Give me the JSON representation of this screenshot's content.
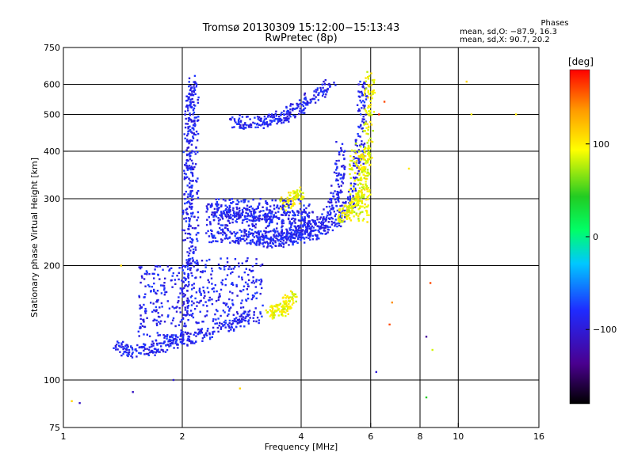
{
  "header": {
    "title": "Tromsø 20130309 15:12:00−15:13:43",
    "subtitle": "RwPretec (8p)",
    "phase_title": "Phases",
    "phase_line1": "mean, sd,O: −87.9, 16.3",
    "phase_line2": "mean, sd,X:  90.7, 20.2"
  },
  "colorbar": {
    "unit_label": "[deg]",
    "ticks": [
      "100",
      "0",
      "−100"
    ],
    "tick_values": [
      100,
      0,
      -100
    ],
    "range": [
      -180,
      180
    ],
    "colors": [
      "#000000",
      "#4a008f",
      "#1f2bff",
      "#00c8ff",
      "#00ff66",
      "#22cc22",
      "#ffff00",
      "#ff9900",
      "#ff0000"
    ]
  },
  "chart_data": {
    "type": "scatter",
    "title": "Tromsø 20130309 15:12:00−15:13:43",
    "subtitle": "RwPretec (8p)",
    "xlabel": "Frequency [MHz]",
    "ylabel": "Stationary phase Virtual Height [km]",
    "xscale": "log",
    "yscale": "log",
    "xlim": [
      1,
      16
    ],
    "ylim": [
      75,
      750
    ],
    "x_ticks": [
      1,
      2,
      4,
      6,
      8,
      10,
      16
    ],
    "y_ticks": [
      75,
      100,
      200,
      300,
      400,
      500,
      600,
      750
    ],
    "x_grid": [
      2,
      4,
      6,
      8,
      10
    ],
    "y_grid": [
      100,
      200,
      300,
      400,
      500,
      600
    ],
    "grid": true,
    "legend": "colorbar right (phase, deg)",
    "series": [
      {
        "name": "O",
        "phase_mean": -87.9,
        "phase_sd": 16.3,
        "traces": [
          {
            "points": [
              [
                1.35,
                122
              ],
              [
                1.5,
                119
              ],
              [
                1.7,
                121
              ],
              [
                1.85,
                125
              ],
              [
                2.0,
                128
              ],
              [
                2.3,
                132
              ],
              [
                2.7,
                140
              ],
              [
                3.0,
                150
              ]
            ]
          },
          {
            "points": [
              [
                2.05,
                128
              ],
              [
                2.06,
                200
              ],
              [
                2.07,
                300
              ],
              [
                2.08,
                420
              ],
              [
                2.1,
                540
              ],
              [
                2.12,
                620
              ]
            ]
          },
          {
            "points": [
              [
                2.3,
                240
              ],
              [
                2.8,
                238
              ],
              [
                3.2,
                237
              ],
              [
                3.6,
                240
              ],
              [
                4.0,
                246
              ],
              [
                4.5,
                258
              ],
              [
                4.8,
                285
              ],
              [
                5.0,
                340
              ],
              [
                5.05,
                420
              ]
            ]
          },
          {
            "points": [
              [
                3.1,
                230
              ],
              [
                3.5,
                232
              ],
              [
                3.8,
                236
              ],
              [
                4.2,
                242
              ],
              [
                4.7,
                252
              ],
              [
                5.1,
                270
              ],
              [
                5.4,
                305
              ],
              [
                5.6,
                380
              ],
              [
                5.7,
                500
              ],
              [
                5.75,
                610
              ]
            ]
          },
          {
            "points": [
              [
                2.4,
                280
              ],
              [
                2.7,
                275
              ],
              [
                3.0,
                272
              ],
              [
                3.4,
                270
              ],
              [
                3.9,
                268
              ],
              [
                4.3,
                266
              ]
            ]
          },
          {
            "points": [
              [
                2.7,
                480
              ],
              [
                3.0,
                475
              ],
              [
                3.3,
                478
              ],
              [
                3.6,
                495
              ],
              [
                3.9,
                515
              ],
              [
                4.3,
                560
              ],
              [
                4.8,
                600
              ]
            ]
          }
        ]
      },
      {
        "name": "X",
        "phase_mean": 90.7,
        "phase_sd": 20.2,
        "traces": [
          {
            "points": [
              [
                5.0,
                270
              ],
              [
                5.3,
                278
              ],
              [
                5.6,
                295
              ],
              [
                5.8,
                330
              ],
              [
                5.9,
                400
              ],
              [
                5.95,
                520
              ],
              [
                6.0,
                640
              ]
            ]
          },
          {
            "points": [
              [
                3.3,
                150
              ],
              [
                3.5,
                152
              ],
              [
                3.7,
                158
              ],
              [
                3.8,
                165
              ]
            ]
          },
          {
            "points": [
              [
                3.6,
                290
              ],
              [
                3.8,
                300
              ],
              [
                4.0,
                310
              ]
            ]
          }
        ]
      }
    ],
    "isolated_points": [
      {
        "x": 6.5,
        "y": 540,
        "phase": 160
      },
      {
        "x": 6.3,
        "y": 500,
        "phase": 170
      },
      {
        "x": 7.5,
        "y": 360,
        "phase": 100
      },
      {
        "x": 8.5,
        "y": 180,
        "phase": 160
      },
      {
        "x": 8.3,
        "y": 130,
        "phase": -130
      },
      {
        "x": 8.6,
        "y": 120,
        "phase": 80
      },
      {
        "x": 8.3,
        "y": 90,
        "phase": 40
      },
      {
        "x": 10.5,
        "y": 610,
        "phase": 110
      },
      {
        "x": 10.8,
        "y": 500,
        "phase": 100
      },
      {
        "x": 14,
        "y": 500,
        "phase": 100
      },
      {
        "x": 6.7,
        "y": 140,
        "phase": 160
      },
      {
        "x": 6.8,
        "y": 160,
        "phase": 140
      },
      {
        "x": 6.2,
        "y": 105,
        "phase": -100
      },
      {
        "x": 1.05,
        "y": 88,
        "phase": 110
      },
      {
        "x": 1.1,
        "y": 87,
        "phase": -110
      },
      {
        "x": 1.5,
        "y": 93,
        "phase": -110
      },
      {
        "x": 2.8,
        "y": 95,
        "phase": 110
      },
      {
        "x": 1.4,
        "y": 200,
        "phase": 110
      },
      {
        "x": 1.9,
        "y": 100,
        "phase": -100
      }
    ]
  }
}
